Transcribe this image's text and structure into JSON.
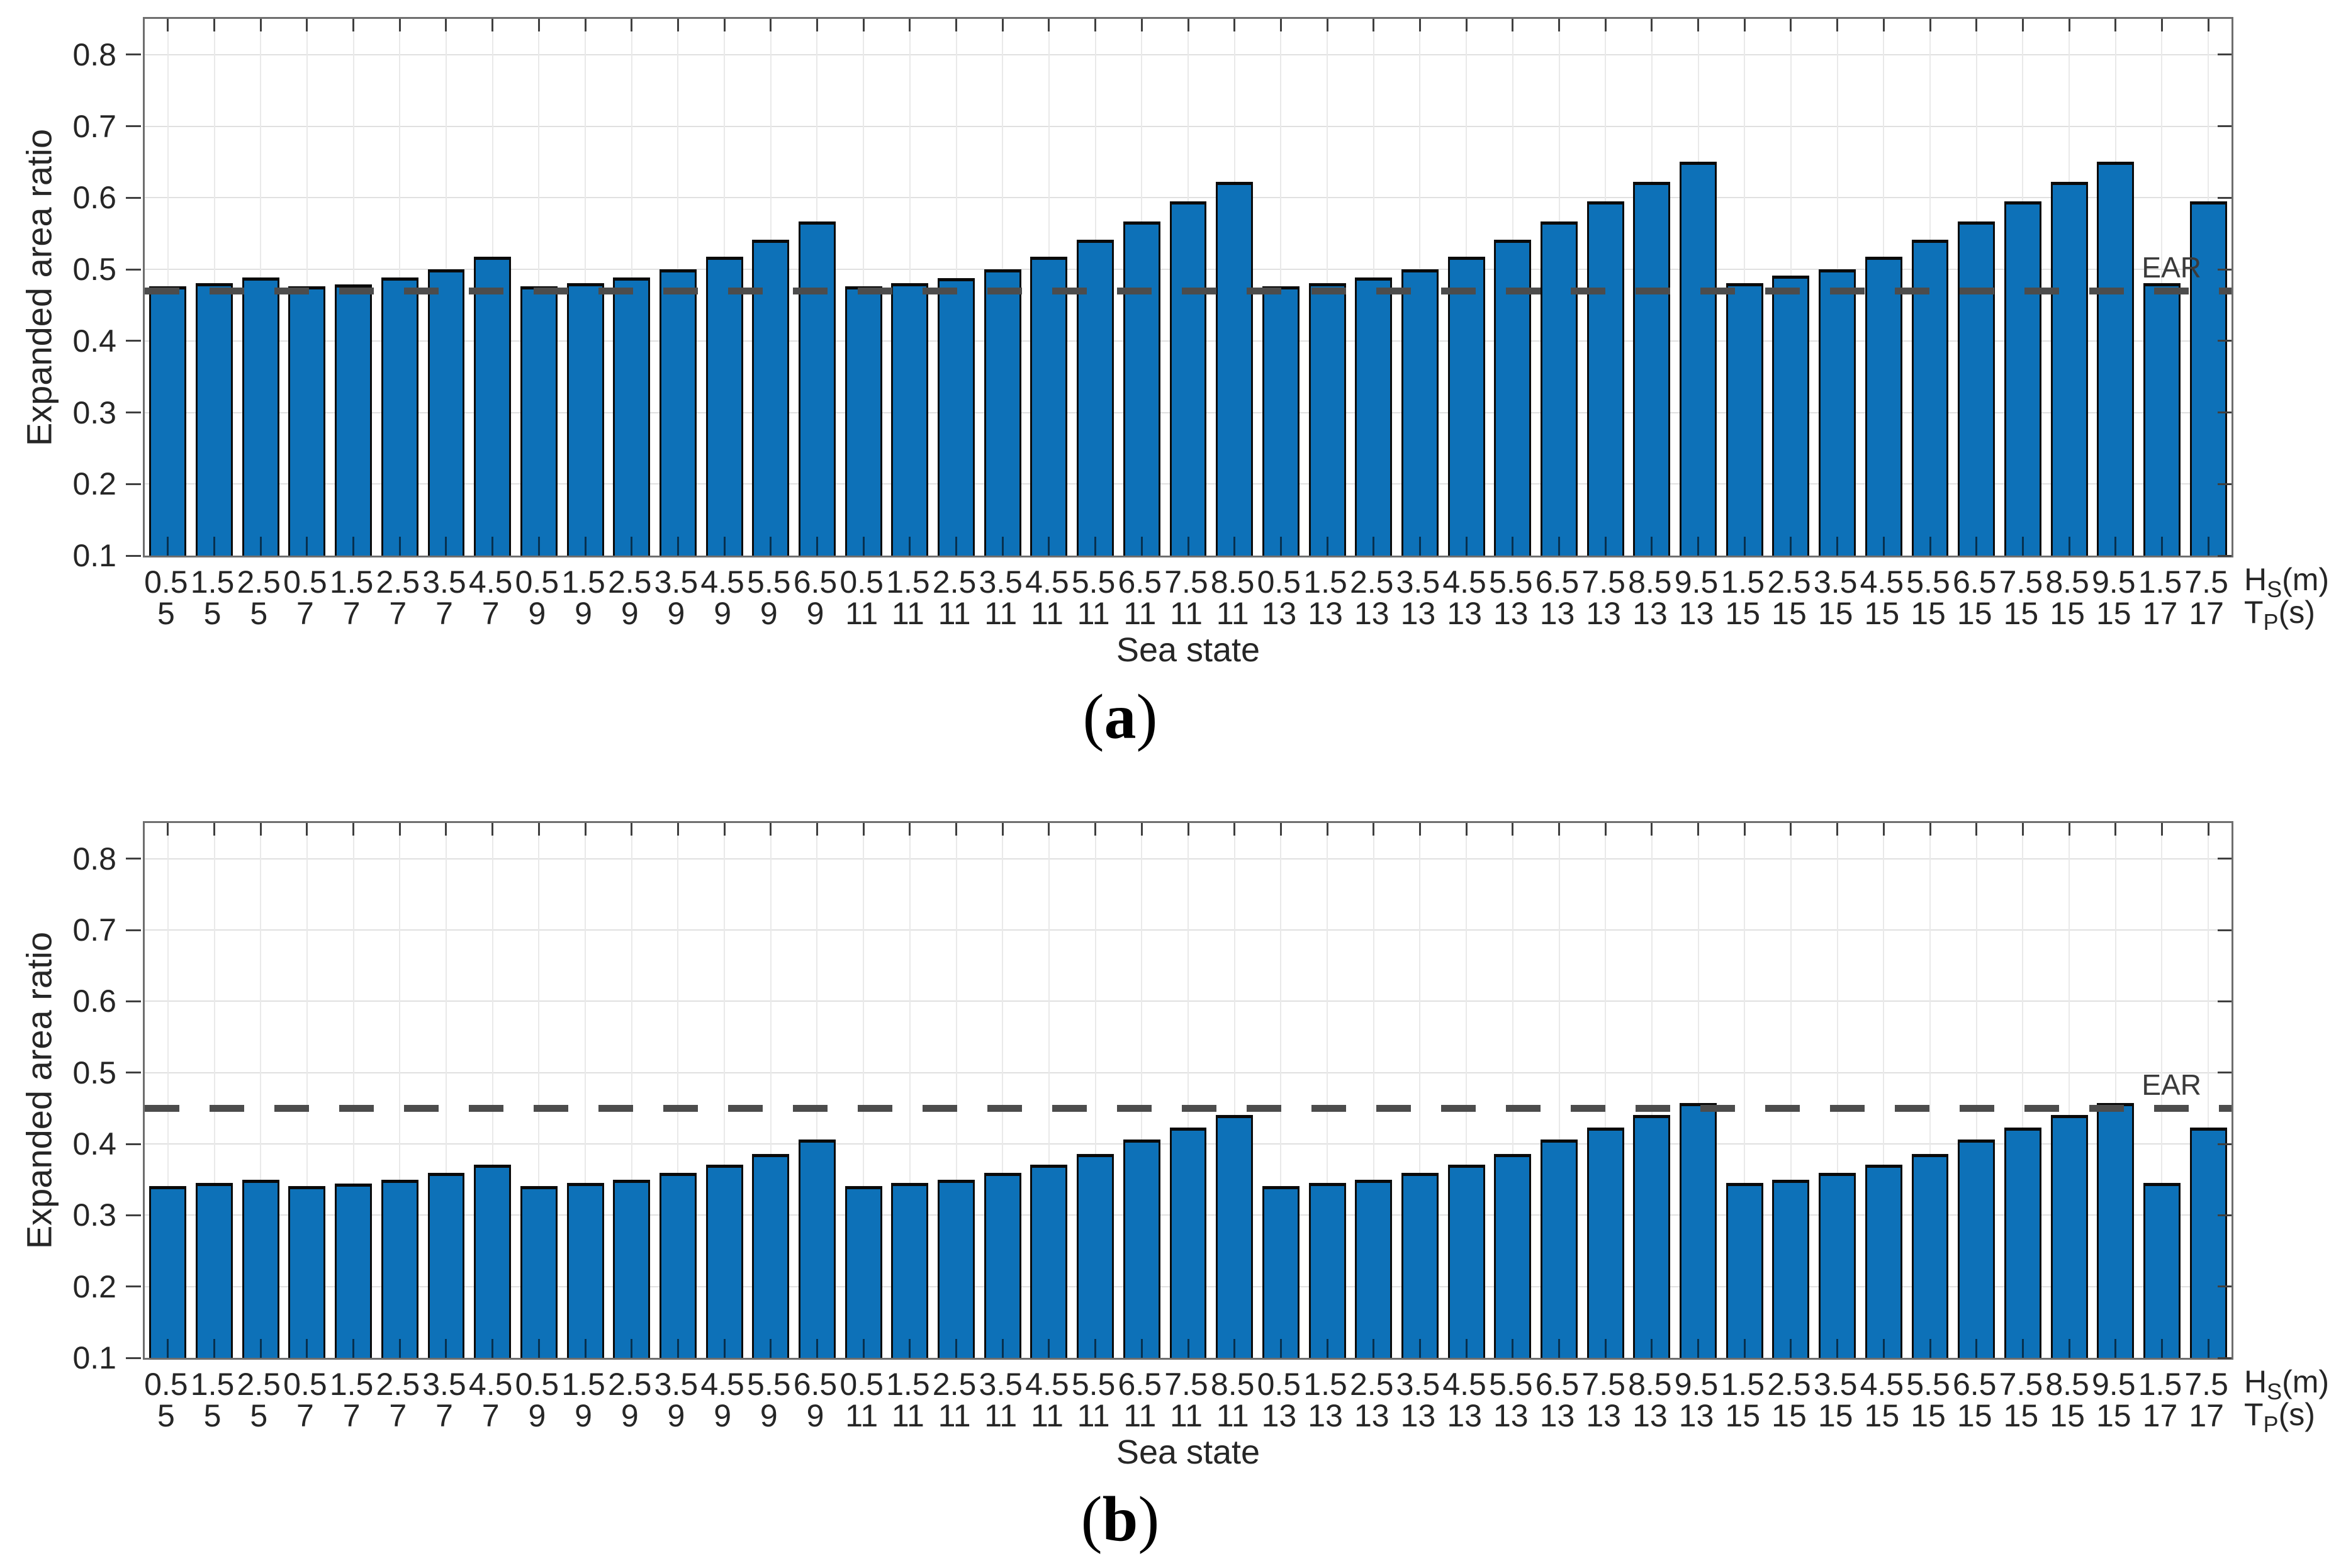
{
  "chart_data": [
    {
      "panel": "a",
      "type": "bar",
      "title": "",
      "ylabel": "Expanded area ratio",
      "xlabel": "Sea state",
      "ylim": [
        0.1,
        0.85
      ],
      "yticks": [
        0.1,
        0.2,
        0.3,
        0.4,
        0.5,
        0.6,
        0.7,
        0.8
      ],
      "grid": "on",
      "legend_position": "none",
      "bar_color": "#0d71b8",
      "ear_line": {
        "label": "EAR",
        "value": 0.47,
        "style": "dashed",
        "color": "#4c4c4c"
      },
      "hs_unit": {
        "pre": "H",
        "sub": "S",
        "post": "(m)"
      },
      "tp_unit": {
        "pre": "T",
        "sub": "P",
        "post": "(s)"
      },
      "categories_hs": [
        "0.5",
        "1.5",
        "2.5",
        "0.5",
        "1.5",
        "2.5",
        "3.5",
        "4.5",
        "0.5",
        "1.5",
        "2.5",
        "3.5",
        "4.5",
        "5.5",
        "6.5",
        "0.5",
        "1.5",
        "2.5",
        "3.5",
        "4.5",
        "5.5",
        "6.5",
        "7.5",
        "8.5",
        "0.5",
        "1.5",
        "2.5",
        "3.5",
        "4.5",
        "5.5",
        "6.5",
        "7.5",
        "8.5",
        "9.5",
        "1.5",
        "2.5",
        "3.5",
        "4.5",
        "5.5",
        "6.5",
        "7.5",
        "8.5",
        "9.5",
        "1.5",
        "7.5"
      ],
      "categories_tp": [
        "5",
        "5",
        "5",
        "7",
        "7",
        "7",
        "7",
        "7",
        "9",
        "9",
        "9",
        "9",
        "9",
        "9",
        "9",
        "11",
        "11",
        "11",
        "11",
        "11",
        "11",
        "11",
        "11",
        "11",
        "13",
        "13",
        "13",
        "13",
        "13",
        "13",
        "13",
        "13",
        "13",
        "13",
        "15",
        "15",
        "15",
        "15",
        "15",
        "15",
        "15",
        "15",
        "15",
        "17",
        "17"
      ],
      "values": [
        0.476,
        0.481,
        0.489,
        0.476,
        0.479,
        0.489,
        0.5,
        0.518,
        0.476,
        0.481,
        0.489,
        0.5,
        0.518,
        0.541,
        0.567,
        0.476,
        0.481,
        0.488,
        0.5,
        0.518,
        0.541,
        0.567,
        0.595,
        0.622,
        0.476,
        0.481,
        0.489,
        0.5,
        0.518,
        0.541,
        0.567,
        0.595,
        0.622,
        0.65,
        0.481,
        0.491,
        0.5,
        0.518,
        0.541,
        0.567,
        0.595,
        0.622,
        0.65,
        0.481,
        0.595
      ],
      "caption": {
        "open": "(",
        "letter": "a",
        "close": ")"
      }
    },
    {
      "panel": "b",
      "type": "bar",
      "title": "",
      "ylabel": "Expanded area ratio",
      "xlabel": "Sea state",
      "ylim": [
        0.1,
        0.85
      ],
      "yticks": [
        0.1,
        0.2,
        0.3,
        0.4,
        0.5,
        0.6,
        0.7,
        0.8
      ],
      "grid": "on",
      "legend_position": "none",
      "bar_color": "#0d71b8",
      "ear_line": {
        "label": "EAR",
        "value": 0.45,
        "style": "dashed",
        "color": "#4c4c4c"
      },
      "hs_unit": {
        "pre": "H",
        "sub": "S",
        "post": "(m)"
      },
      "tp_unit": {
        "pre": "T",
        "sub": "P",
        "post": "(s)"
      },
      "categories_hs": [
        "0.5",
        "1.5",
        "2.5",
        "0.5",
        "1.5",
        "2.5",
        "3.5",
        "4.5",
        "0.5",
        "1.5",
        "2.5",
        "3.5",
        "4.5",
        "5.5",
        "6.5",
        "0.5",
        "1.5",
        "2.5",
        "3.5",
        "4.5",
        "5.5",
        "6.5",
        "7.5",
        "8.5",
        "0.5",
        "1.5",
        "2.5",
        "3.5",
        "4.5",
        "5.5",
        "6.5",
        "7.5",
        "8.5",
        "9.5",
        "1.5",
        "2.5",
        "3.5",
        "4.5",
        "5.5",
        "6.5",
        "7.5",
        "8.5",
        "9.5",
        "1.5",
        "7.5"
      ],
      "categories_tp": [
        "5",
        "5",
        "5",
        "7",
        "7",
        "7",
        "7",
        "7",
        "9",
        "9",
        "9",
        "9",
        "9",
        "9",
        "9",
        "11",
        "11",
        "11",
        "11",
        "11",
        "11",
        "11",
        "11",
        "11",
        "13",
        "13",
        "13",
        "13",
        "13",
        "13",
        "13",
        "13",
        "13",
        "13",
        "15",
        "15",
        "15",
        "15",
        "15",
        "15",
        "15",
        "15",
        "15",
        "17",
        "17"
      ],
      "values": [
        0.341,
        0.345,
        0.35,
        0.341,
        0.344,
        0.35,
        0.359,
        0.371,
        0.341,
        0.345,
        0.35,
        0.359,
        0.371,
        0.386,
        0.406,
        0.341,
        0.345,
        0.35,
        0.359,
        0.371,
        0.386,
        0.406,
        0.423,
        0.441,
        0.341,
        0.345,
        0.35,
        0.359,
        0.371,
        0.386,
        0.406,
        0.423,
        0.441,
        0.457,
        0.345,
        0.35,
        0.359,
        0.371,
        0.386,
        0.406,
        0.423,
        0.441,
        0.457,
        0.345,
        0.423
      ],
      "caption": {
        "open": "(",
        "letter": "b",
        "close": ")"
      }
    }
  ]
}
